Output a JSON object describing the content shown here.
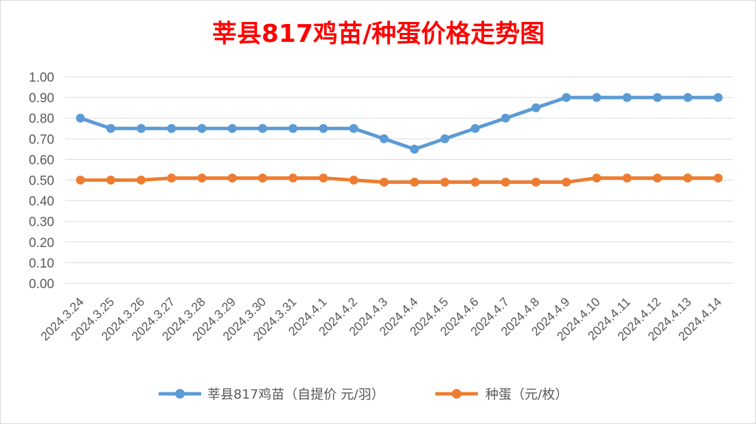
{
  "chart_data": {
    "type": "line",
    "title": "莘县817鸡苗/种蛋价格走势图",
    "xlabel": "",
    "ylabel": "",
    "ylim": [
      0,
      1.0
    ],
    "y_ticks": [
      "0.00",
      "0.10",
      "0.20",
      "0.30",
      "0.40",
      "0.50",
      "0.60",
      "0.70",
      "0.80",
      "0.90",
      "1.00"
    ],
    "grid": true,
    "legend_position": "bottom",
    "categories": [
      "2024.3.24",
      "2024.3.25",
      "2024.3.26",
      "2024.3.27",
      "2024.3.28",
      "2024.3.29",
      "2024.3.30",
      "2024.3.31",
      "2024.4.1",
      "2024.4.2",
      "2024.4.3",
      "2024.4.4",
      "2024.4.5",
      "2024.4.6",
      "2024.4.7",
      "2024.4.8",
      "2024.4.9",
      "2024.4.10",
      "2024.4.11",
      "2024.4.12",
      "2024.4.13",
      "2024.4.14"
    ],
    "series": [
      {
        "name": "莘县817鸡苗（自提价 元/羽）",
        "color": "#5b9bd5",
        "values": [
          0.8,
          0.75,
          0.75,
          0.75,
          0.75,
          0.75,
          0.75,
          0.75,
          0.75,
          0.75,
          0.7,
          0.65,
          0.7,
          0.75,
          0.8,
          0.85,
          0.9,
          0.9,
          0.9,
          0.9,
          0.9,
          0.9
        ]
      },
      {
        "name": "种蛋（元/枚）",
        "color": "#ed7d31",
        "values": [
          0.5,
          0.5,
          0.5,
          0.51,
          0.51,
          0.51,
          0.51,
          0.51,
          0.51,
          0.5,
          0.49,
          0.49,
          0.49,
          0.49,
          0.49,
          0.49,
          0.49,
          0.51,
          0.51,
          0.51,
          0.51,
          0.51
        ]
      }
    ],
    "title_color": "#ff0000",
    "gridline_color": "#d9d9d9",
    "axis_text_color": "#595959"
  }
}
